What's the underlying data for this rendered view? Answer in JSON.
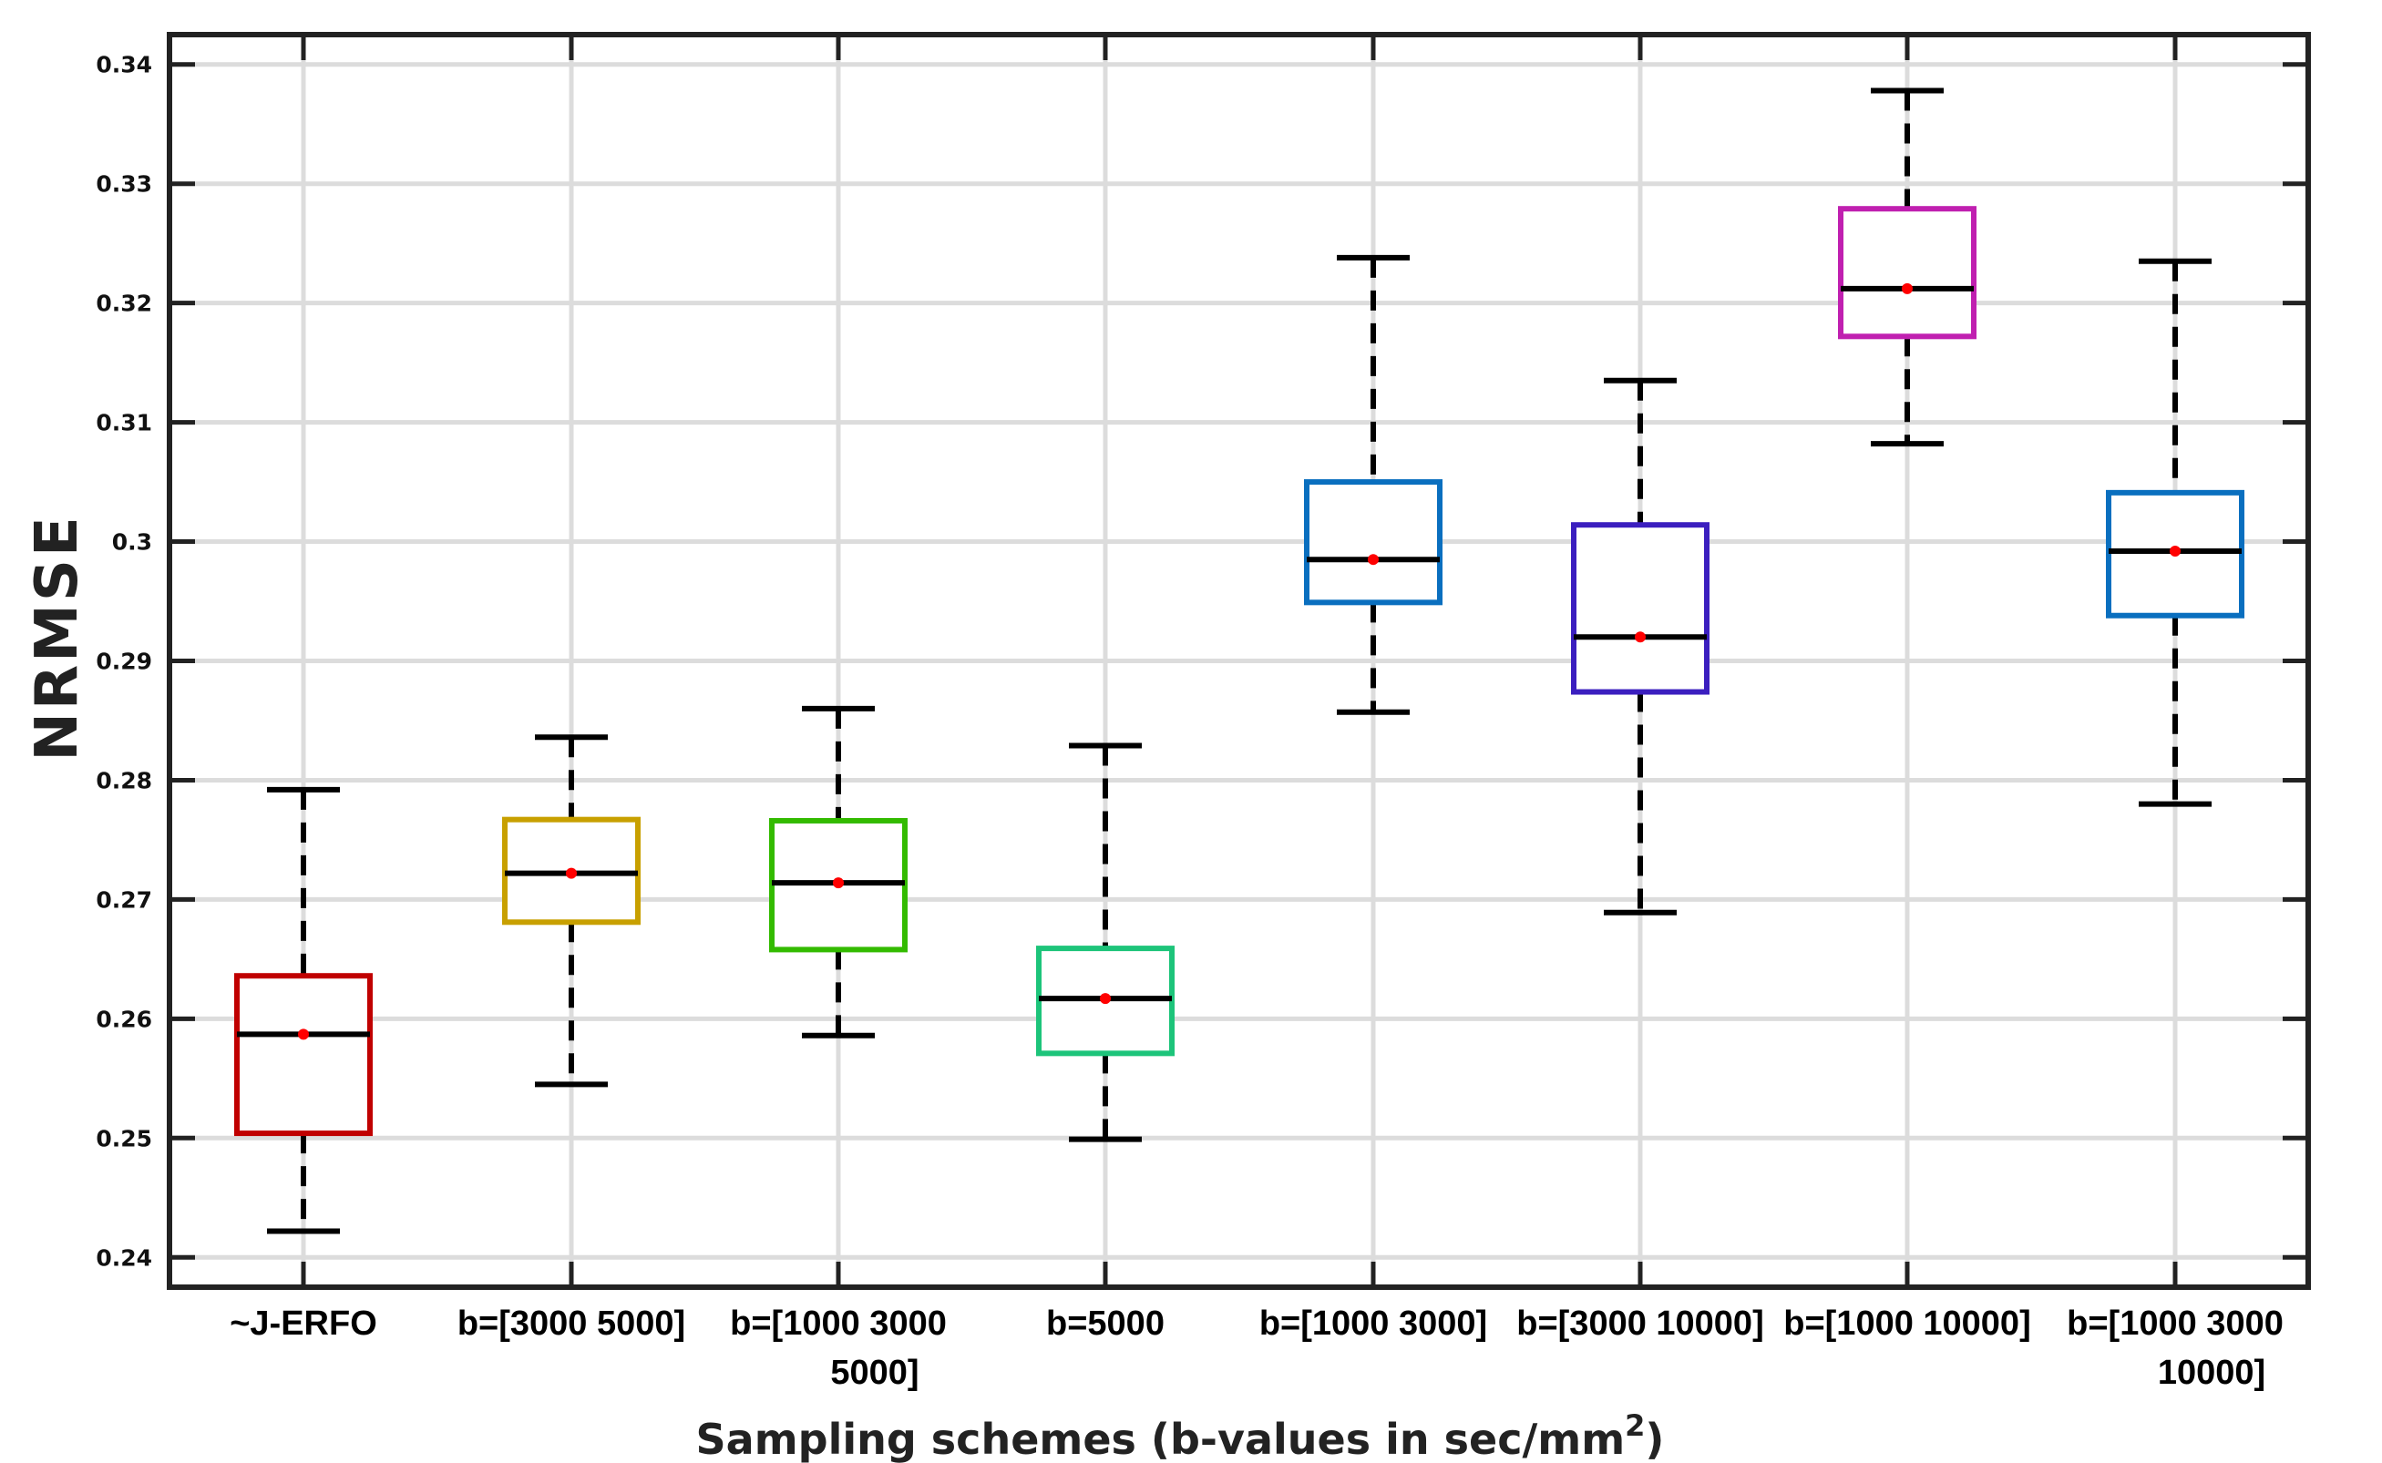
{
  "chart_data": {
    "type": "boxplot",
    "title": "",
    "xlabel": "Sampling schemes (b-values in sec/mm",
    "xlabel_superscript": "2",
    "xlabel_suffix": ")",
    "ylabel": "NRMSE",
    "ylim": [
      0.2375,
      0.3425
    ],
    "yticks": [
      0.24,
      0.25,
      0.26,
      0.27,
      0.28,
      0.29,
      0.3,
      0.31,
      0.32,
      0.33,
      0.34
    ],
    "ytick_labels": [
      "0.24",
      "0.25",
      "0.26",
      "0.27",
      "0.28",
      "0.29",
      "0.3",
      "0.31",
      "0.32",
      "0.33",
      "0.34"
    ],
    "grid": true,
    "categories": [
      {
        "lines": [
          "~J-ERFO"
        ],
        "whisker_low": 0.2422,
        "q1": 0.2504,
        "median": 0.2587,
        "mean": 0.2587,
        "q3": 0.2636,
        "whisker_high": 0.2792,
        "color": "#c00000"
      },
      {
        "lines": [
          "b=[3000 5000]"
        ],
        "whisker_low": 0.2545,
        "q1": 0.2681,
        "median": 0.2722,
        "mean": 0.2722,
        "q3": 0.2767,
        "whisker_high": 0.2836,
        "color": "#c8a000"
      },
      {
        "lines": [
          "b=[1000 3000",
          "5000]"
        ],
        "whisker_low": 0.2586,
        "q1": 0.2658,
        "median": 0.2714,
        "mean": 0.2714,
        "q3": 0.2766,
        "whisker_high": 0.286,
        "color": "#33bb00"
      },
      {
        "lines": [
          "b=5000"
        ],
        "whisker_low": 0.2499,
        "q1": 0.2571,
        "median": 0.2617,
        "mean": 0.2617,
        "q3": 0.2659,
        "whisker_high": 0.2829,
        "color": "#1dc47a"
      },
      {
        "lines": [
          "b=[1000 3000]"
        ],
        "whisker_low": 0.2857,
        "q1": 0.2949,
        "median": 0.2985,
        "mean": 0.2985,
        "q3": 0.305,
        "whisker_high": 0.3238,
        "color": "#0a6fbf"
      },
      {
        "lines": [
          "b=[3000 10000]"
        ],
        "whisker_low": 0.2689,
        "q1": 0.2874,
        "median": 0.292,
        "mean": 0.292,
        "q3": 0.3014,
        "whisker_high": 0.3135,
        "color": "#3b1fbf"
      },
      {
        "lines": [
          "b=[1000 10000]"
        ],
        "whisker_low": 0.3082,
        "q1": 0.3172,
        "median": 0.3212,
        "mean": 0.3212,
        "q3": 0.3279,
        "whisker_high": 0.3378,
        "color": "#c020b0"
      },
      {
        "lines": [
          "b=[1000 3000",
          "10000]"
        ],
        "whisker_low": 0.278,
        "q1": 0.2938,
        "median": 0.2992,
        "mean": 0.2992,
        "q3": 0.3041,
        "whisker_high": 0.3235,
        "color": "#0a6fbf"
      }
    ],
    "median_color": "#000000",
    "mean_marker_color": "#ff0000"
  }
}
